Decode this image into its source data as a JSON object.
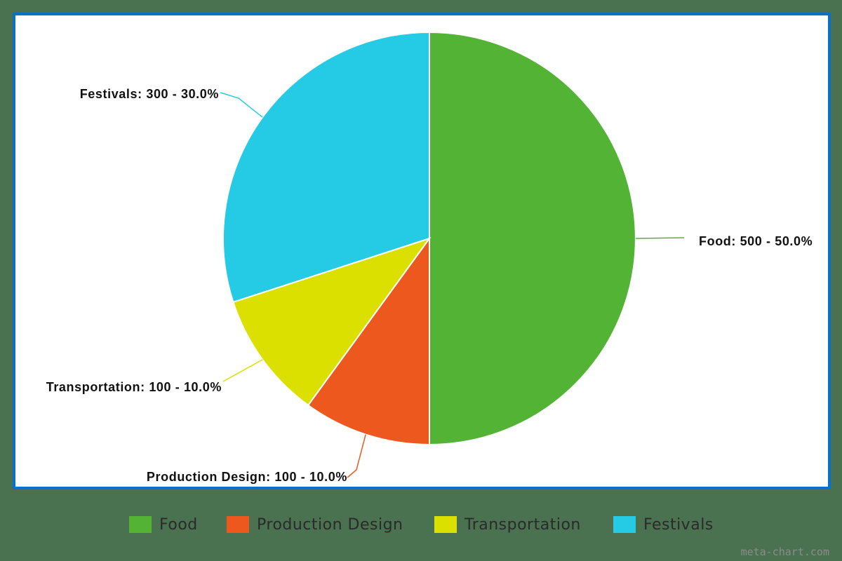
{
  "chart_data": {
    "type": "pie",
    "title": "",
    "categories": [
      "Food",
      "Production Design",
      "Transportation",
      "Festivals"
    ],
    "values": [
      500,
      100,
      100,
      300
    ],
    "percentages": [
      50.0,
      10.0,
      10.0,
      30.0
    ],
    "colors": [
      "#52b334",
      "#ec581e",
      "#dbe000",
      "#25cbe4"
    ],
    "data_labels": [
      "Food: 500 - 50.0%",
      "Production Design: 100 - 10.0%",
      "Transportation: 100 - 10.0%",
      "Festivals: 300 - 30.0%"
    ],
    "start_angle": "12 o'clock, clockwise",
    "legend_position": "bottom"
  },
  "legend": {
    "items": [
      {
        "label": "Food",
        "color": "#52b334"
      },
      {
        "label": "Production Design",
        "color": "#ec581e"
      },
      {
        "label": "Transportation",
        "color": "#dbe000"
      },
      {
        "label": "Festivals",
        "color": "#25cbe4"
      }
    ]
  },
  "watermark": "meta-chart.com",
  "colors": {
    "background": "#4a7150",
    "frame_border": "#0a70c8",
    "plot_background": "#ffffff"
  }
}
